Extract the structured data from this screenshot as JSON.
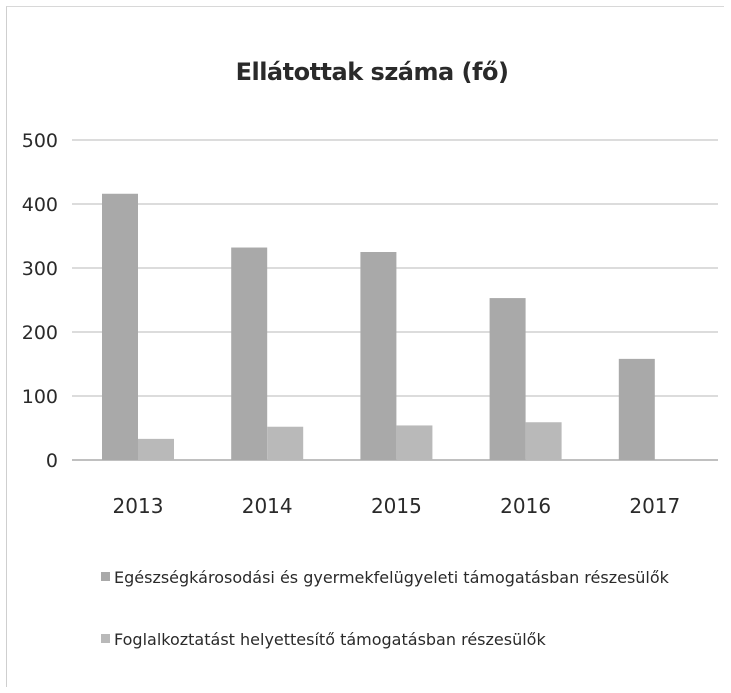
{
  "chart_data": {
    "type": "bar",
    "title": "Ellátottak száma (fő)",
    "xlabel": "",
    "ylabel": "",
    "categories": [
      "2013",
      "2014",
      "2015",
      "2016",
      "2017"
    ],
    "yticks": [
      "0",
      "100",
      "200",
      "300",
      "400",
      "500"
    ],
    "ylim": [
      0,
      500
    ],
    "grid": true,
    "legend_position": "bottom",
    "series": [
      {
        "name": "Egészségkárosodási és gyermekfelügyeleti támogatásban részesülők",
        "values": [
          416,
          332,
          325,
          253,
          158
        ],
        "color": "#a9a9a9"
      },
      {
        "name": "Foglalkoztatást helyettesítő támogatásban részesülők",
        "values": [
          33,
          52,
          54,
          59,
          0
        ],
        "color": "#b9b9b9"
      }
    ]
  }
}
